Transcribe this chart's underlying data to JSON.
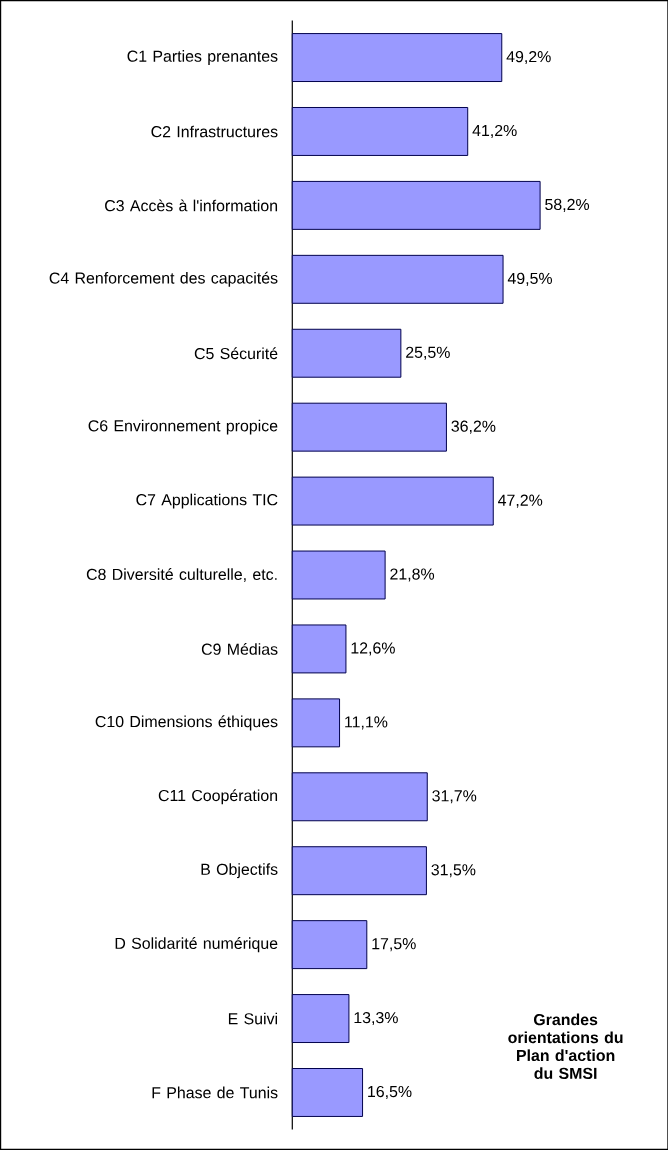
{
  "chart_data": {
    "type": "bar",
    "orientation": "horizontal",
    "categories": [
      "C1 Parties prenantes",
      "C2 Infrastructures",
      "C3 Accès à l'information",
      "C4 Renforcement des capacités",
      "C5 Sécurité",
      "C6 Environnement propice",
      "C7 Applications TIC",
      "C8 Diversité culturelle, etc.",
      "C9 Médias",
      "C10 Dimensions éthiques",
      "C11 Coopération",
      "B Objectifs",
      "D Solidarité numérique",
      "E Suivi",
      "F Phase de Tunis"
    ],
    "values": [
      49.2,
      41.2,
      58.2,
      49.5,
      25.5,
      36.2,
      47.2,
      21.8,
      12.6,
      11.1,
      31.7,
      31.5,
      17.5,
      13.3,
      16.5
    ],
    "value_labels": [
      "49,2%",
      "41,2%",
      "58,2%",
      "49,5%",
      "25,5%",
      "36,2%",
      "47,2%",
      "21,8%",
      "12,6%",
      "11,1%",
      "31,7%",
      "31,5%",
      "17,5%",
      "13,3%",
      "16,5%"
    ],
    "color": "#9999ff",
    "annotations": [
      "Grandes orientations du Plan d'action du SMSI"
    ]
  }
}
